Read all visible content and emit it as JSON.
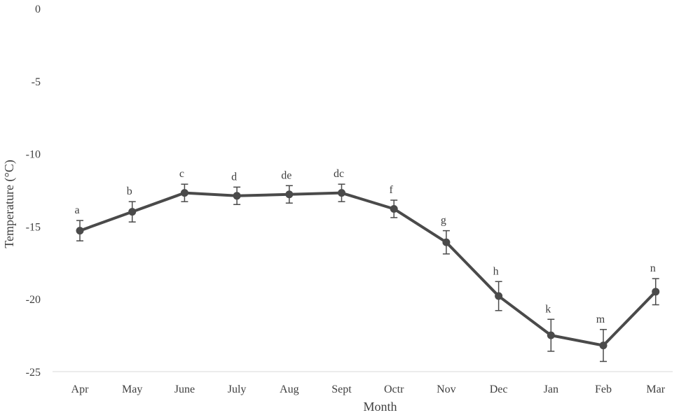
{
  "chart_data": {
    "type": "line",
    "title": "",
    "xlabel": "Month",
    "ylabel": "Temperature (°C)",
    "ylim": [
      -25,
      0
    ],
    "yticks": [
      0,
      -5,
      -10,
      -15,
      -20,
      -25
    ],
    "grid": false,
    "legend": "none",
    "categories": [
      "Apr",
      "May",
      "June",
      "July",
      "Aug",
      "Sept",
      "Octr",
      "Nov",
      "Dec",
      "Jan",
      "Feb",
      "Mar"
    ],
    "series": [
      {
        "values": [
          -15.3,
          -14.0,
          -12.7,
          -12.9,
          -12.8,
          -12.7,
          -13.8,
          -16.1,
          -19.8,
          -22.5,
          -23.2,
          -19.5
        ],
        "error": [
          0.7,
          0.7,
          0.6,
          0.6,
          0.6,
          0.6,
          0.6,
          0.8,
          1.0,
          1.1,
          1.1,
          0.9
        ],
        "labels": [
          "a",
          "b",
          "c",
          "d",
          "de",
          "dc",
          "f",
          "g",
          "h",
          "k",
          "m",
          "n"
        ],
        "color": "#4a4a4a"
      }
    ]
  }
}
